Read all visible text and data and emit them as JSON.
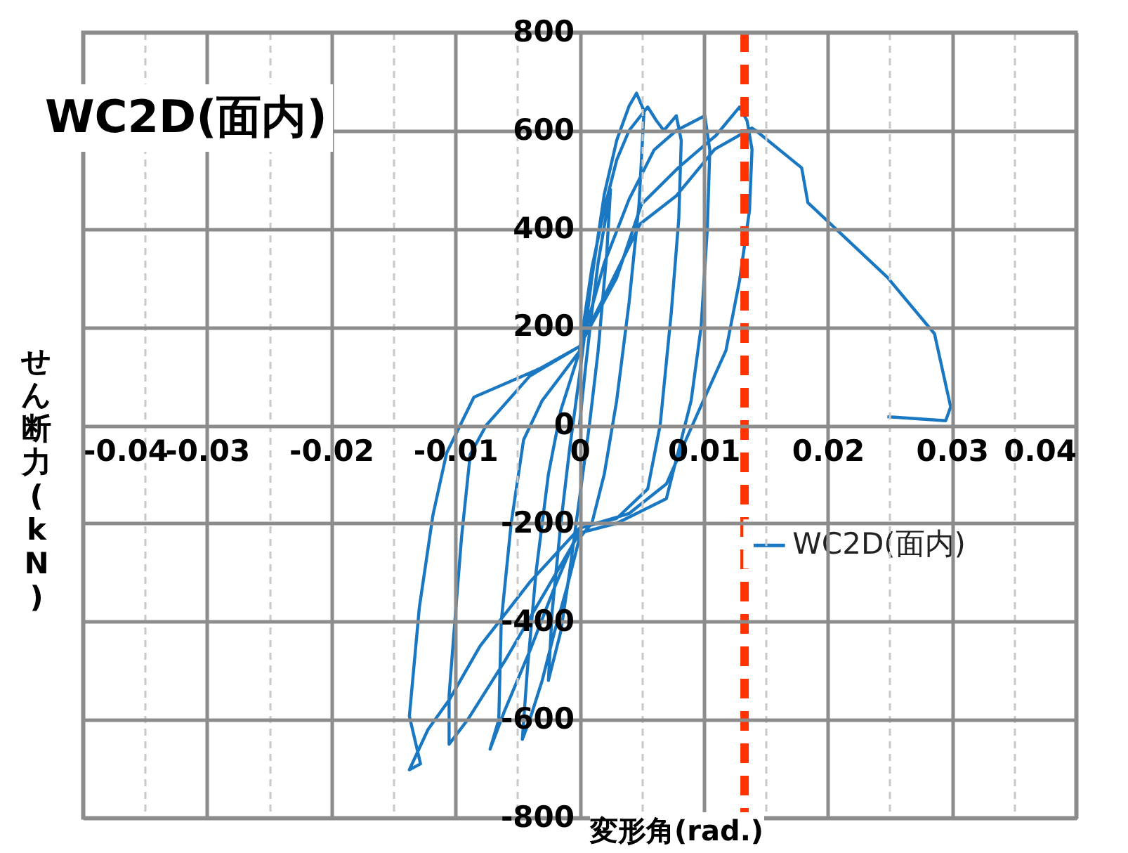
{
  "chart_data": {
    "type": "line",
    "title": "WC2D(面内)",
    "xlabel": "変形角(rad.)",
    "ylabel": "せん断力(kN)",
    "x": [
      0,
      0.0005,
      0.001,
      0.0015,
      0.0025,
      0.0022,
      0.0015,
      0.0008,
      0,
      -0.0008,
      -0.0015,
      -0.0025,
      -0.0022,
      -0.0015,
      -0.0008,
      0,
      0.001,
      0.002,
      0.003,
      0.004,
      0.0046,
      0.0052,
      0.0048,
      0.004,
      0.003,
      0.002,
      0.001,
      0,
      -0.001,
      -0.002,
      -0.003,
      -0.004,
      -0.0046,
      -0.0042,
      -0.0035,
      -0.0025,
      -0.0015,
      0,
      0.001,
      0.002,
      0.003,
      0.004,
      0.0055,
      0.0062,
      0.0068,
      0.0078,
      0.0082,
      0.008,
      0.0074,
      0.0065,
      0.0055,
      0.003,
      0,
      -0.002,
      -0.004,
      -0.006,
      -0.0072,
      -0.0065,
      -0.0063,
      -0.0055,
      -0.0045,
      -0.003,
      0,
      0.002,
      0.004,
      0.006,
      0.0078,
      0.0101,
      0.0105,
      0.0103,
      0.0098,
      0.009,
      0.0085,
      0.007,
      0.003,
      0,
      -0.003,
      -0.006,
      -0.009,
      -0.0105,
      -0.0105,
      -0.0101,
      -0.0095,
      -0.0088,
      -0.0075,
      -0.004,
      0,
      0.003,
      0.005,
      0.008,
      0.011,
      0.0129,
      0.0135,
      0.0139,
      0.0137,
      0.0129,
      0.0118,
      0.0094,
      0.007,
      0.004,
      0,
      -0.004,
      -0.008,
      -0.0105,
      -0.0122,
      -0.0137,
      -0.0128,
      -0.0137,
      -0.0129,
      -0.0118,
      -0.0107,
      -0.0085,
      -0.0032,
      0,
      0.0049,
      0.0078,
      0.0109,
      0.0139,
      0.0142,
      0.0179,
      0.0184,
      0.0248,
      0.0286,
      0.0299,
      0.0295,
      0.0248
    ],
    "series": [
      {
        "name": "WC2D(面内)",
        "color": "#1a78c2",
        "values": [
          0,
          120,
          230,
          330,
          480,
          350,
          150,
          0,
          -150,
          -300,
          -420,
          -520,
          -380,
          -200,
          -50,
          100,
          300,
          470,
          580,
          650,
          676,
          640,
          450,
          250,
          50,
          -100,
          -200,
          -230,
          -330,
          -420,
          -520,
          -600,
          -640,
          -500,
          -300,
          -100,
          30,
          150,
          320,
          440,
          540,
          600,
          648,
          620,
          600,
          630,
          580,
          420,
          230,
          0,
          -130,
          -190,
          -210,
          -330,
          -460,
          -580,
          -660,
          -600,
          -400,
          -200,
          -30,
          50,
          150,
          330,
          460,
          560,
          600,
          630,
          560,
          400,
          200,
          50,
          0,
          -150,
          -200,
          -220,
          -350,
          -480,
          -600,
          -650,
          -550,
          -420,
          -229,
          -60,
          0,
          100,
          160,
          300,
          450,
          525,
          590,
          648,
          620,
          562,
          438,
          295,
          152,
          17,
          -120,
          -180,
          -210,
          -320,
          -450,
          -560,
          -620,
          -702,
          -690,
          -593,
          -372,
          -183,
          -57,
          57,
          115,
          160,
          410,
          467,
          562,
          605,
          600,
          524,
          453,
          301,
          186,
          37,
          9,
          17
        ]
      }
    ],
    "xlim": [
      -0.04,
      0.04
    ],
    "ylim": [
      -800,
      800
    ],
    "xticks": [
      -0.04,
      {
        "value": -0.035,
        "label": null
      },
      -0.03,
      {
        "value": -0.025,
        "label": null
      },
      -0.02,
      {
        "value": -0.015,
        "label": null
      },
      -0.01,
      {
        "value": -0.005,
        "label": null
      },
      0,
      {
        "value": 0.005,
        "label": null
      },
      0.01,
      {
        "value": 0.015,
        "label": null
      },
      0.02,
      {
        "value": 0.025,
        "label": null
      },
      0.03,
      {
        "value": 0.035,
        "label": null
      },
      0.04
    ],
    "yticks": [
      -800,
      -600,
      -400,
      -200,
      0,
      200,
      400,
      600,
      800
    ],
    "ref_lines": [
      {
        "axis": "x",
        "value": 0.0133,
        "color": "#ff3300",
        "line_style": "dashed"
      }
    ],
    "grid": true,
    "legend": "right"
  }
}
